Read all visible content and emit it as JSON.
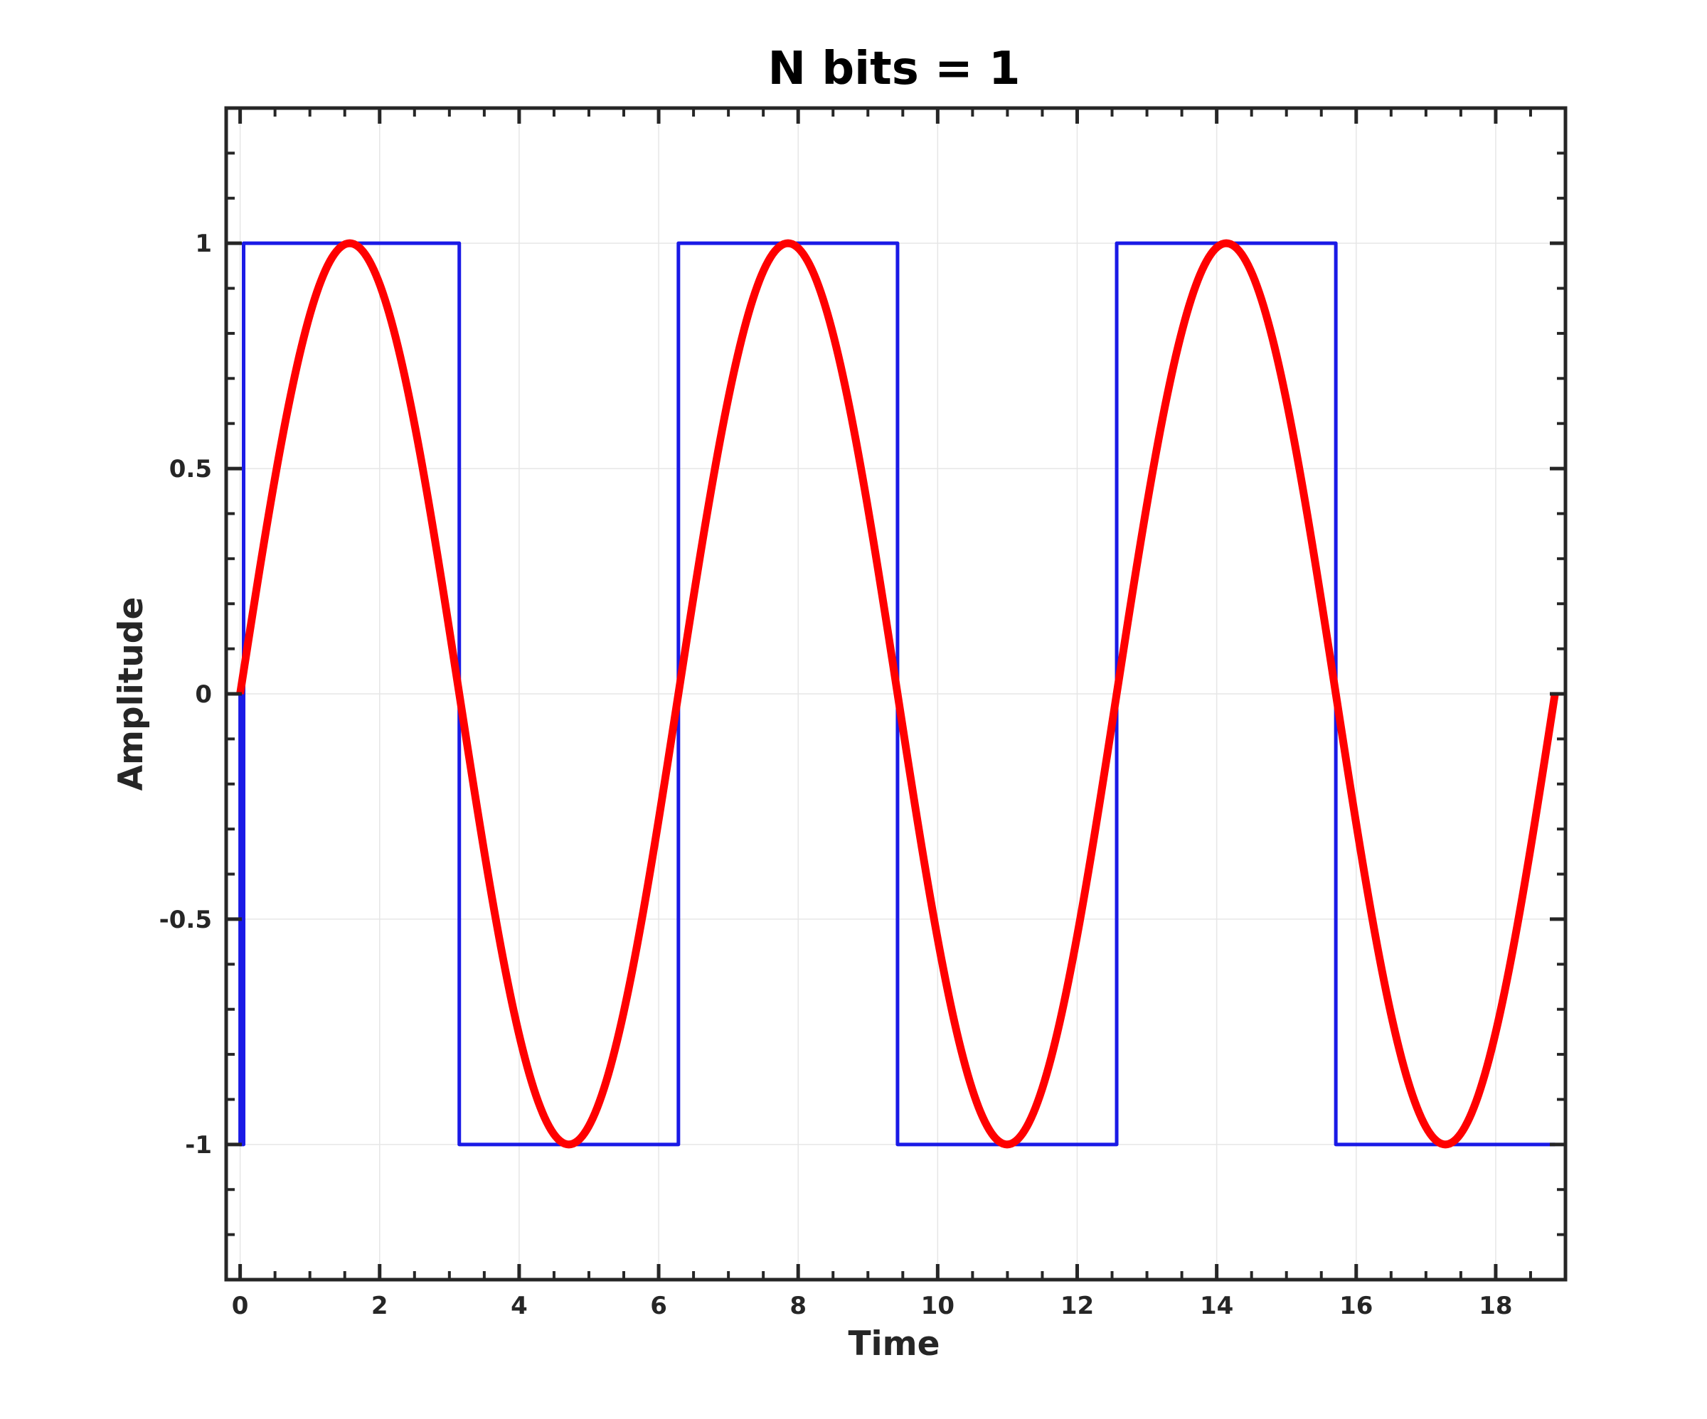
{
  "chart_data": {
    "type": "line",
    "title": "N bits = 1",
    "xlabel": "Time",
    "ylabel": "Amplitude",
    "xlim": [
      -0.2,
      19
    ],
    "ylim": [
      -1.3,
      1.3
    ],
    "xticks": [
      0,
      2,
      4,
      6,
      8,
      10,
      12,
      14,
      16,
      18
    ],
    "xtick_labels": [
      "0",
      "2",
      "4",
      "6",
      "8",
      "10",
      "12",
      "14",
      "16",
      "18"
    ],
    "yticks": [
      -1,
      -0.5,
      0,
      0.5,
      1
    ],
    "ytick_labels": [
      "-1",
      "-0.5",
      "0",
      "0.5",
      "1"
    ],
    "grid": true,
    "legend": "none",
    "series": [
      {
        "kind": "step",
        "color": "#1a1ae6",
        "line_width": "thin",
        "x": [
          0,
          0,
          0.05,
          0.05,
          3.1416,
          3.1416,
          6.2832,
          6.2832,
          9.4248,
          9.4248,
          12.5664,
          12.5664,
          15.708,
          15.708,
          18.85
        ],
        "y": [
          0,
          -1,
          -1,
          1,
          1,
          -1,
          -1,
          1,
          1,
          -1,
          -1,
          1,
          1,
          -1,
          -1
        ]
      },
      {
        "kind": "line",
        "color": "#ff0000",
        "line_width": "thick",
        "x": [
          0,
          0.785,
          1.571,
          2.356,
          3.142,
          3.927,
          4.712,
          5.498,
          6.283,
          7.069,
          7.854,
          8.639,
          9.425,
          10.21,
          10.996,
          11.781,
          12.566,
          13.352,
          14.137,
          14.923,
          15.708,
          16.493,
          17.279,
          18.064,
          18.85
        ],
        "y": [
          0,
          0.707,
          1,
          0.707,
          0,
          -0.707,
          -1,
          -0.707,
          0,
          0.707,
          1,
          0.707,
          0,
          -0.707,
          -1,
          -0.707,
          0,
          0.707,
          1,
          0.707,
          0,
          -0.707,
          -1,
          -0.707,
          0
        ]
      }
    ]
  },
  "colors": {
    "axes": "#262626",
    "grid": "#e6e6e6",
    "background": "#ffffff"
  }
}
